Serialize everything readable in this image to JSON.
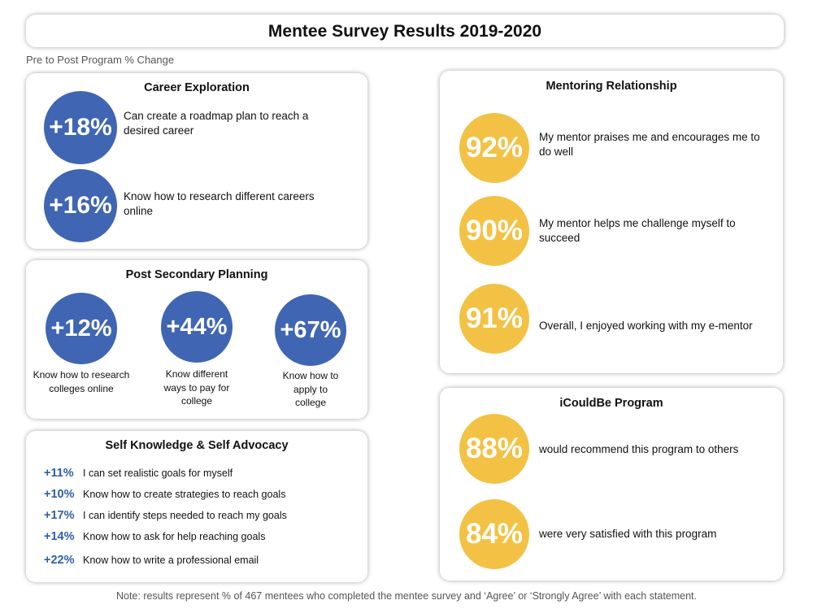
{
  "title": "Mentee Survey Results 2019-2020",
  "subtitle": "Pre to Post Program % Change",
  "colors": {
    "blue": "#3f65b3",
    "gold": "#f3c244",
    "pct_text": "#2e5ea8"
  },
  "career": {
    "title": "Career Exploration",
    "items": [
      {
        "pct": "+18%",
        "text": "Can create a roadmap plan to reach a desired career"
      },
      {
        "pct": "+16%",
        "text": "Know how to research different careers online"
      }
    ]
  },
  "post_secondary": {
    "title": "Post Secondary Planning",
    "items": [
      {
        "pct": "+12%",
        "label": "Know how to research colleges online"
      },
      {
        "pct": "+44%",
        "label": "Know different ways to pay for college"
      },
      {
        "pct": "+67%",
        "label": "Know how to apply to college"
      }
    ]
  },
  "self_knowledge": {
    "title": "Self Knowledge & Self Advocacy",
    "items": [
      {
        "pct": "+11%",
        "text": "I can set realistic goals for myself"
      },
      {
        "pct": "+10%",
        "text": "Know how to create strategies to reach goals"
      },
      {
        "pct": "+17%",
        "text": "I can identify steps needed to reach my goals"
      },
      {
        "pct": "+14%",
        "text": "Know how to ask for help reaching goals"
      },
      {
        "pct": "+22%",
        "text": "Know how to write a professional email"
      }
    ]
  },
  "mentoring": {
    "title": "Mentoring Relationship",
    "items": [
      {
        "pct": "92%",
        "text": "My mentor praises me and encourages me to do well"
      },
      {
        "pct": "90%",
        "text": "My mentor helps me challenge myself to succeed"
      },
      {
        "pct": "91%",
        "text": "Overall, I enjoyed working with my e-mentor"
      }
    ]
  },
  "icouldbe": {
    "title": "iCouldBe Program",
    "items": [
      {
        "pct": "88%",
        "text": "would recommend this program to others"
      },
      {
        "pct": "84%",
        "text": "were very satisfied with this program"
      }
    ]
  },
  "note": "Note: results represent % of 467 mentees who completed the mentee survey and ‘Agree’ or ‘Strongly Agree’ with each statement."
}
